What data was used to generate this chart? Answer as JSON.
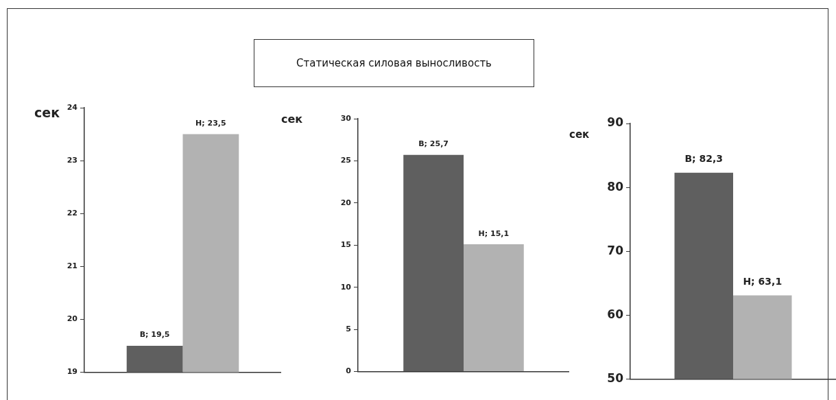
{
  "chart_data": [
    {
      "type": "bar",
      "ylabel": "сек",
      "categories": [
        null
      ],
      "ylim": [
        19,
        24
      ],
      "yticks": [
        19,
        20,
        21,
        22,
        23,
        24
      ],
      "grid": false,
      "legend": false,
      "series": [
        {
          "color": "#5f5f5f",
          "values": [
            19.5
          ],
          "value_labels": [
            "В; 19,5"
          ]
        },
        {
          "color": "#b2b2b2",
          "values": [
            23.5
          ],
          "value_labels": [
            "Н; 23,5"
          ]
        }
      ]
    },
    {
      "type": "bar",
      "title": "Статическая силовая выносливость",
      "ylabel": "сек",
      "categories": [
        null
      ],
      "ylim": [
        0,
        30
      ],
      "yticks": [
        0,
        5,
        10,
        15,
        20,
        25,
        30
      ],
      "grid": false,
      "legend": false,
      "series": [
        {
          "color": "#5f5f5f",
          "values": [
            25.7
          ],
          "value_labels": [
            "В; 25,7"
          ]
        },
        {
          "color": "#b2b2b2",
          "values": [
            15.1
          ],
          "value_labels": [
            "Н; 15,1"
          ]
        }
      ]
    },
    {
      "type": "bar",
      "ylabel": "сек",
      "categories": [
        null
      ],
      "ylim": [
        50,
        90
      ],
      "yticks": [
        50,
        60,
        70,
        80,
        90
      ],
      "grid": false,
      "legend": false,
      "series": [
        {
          "color": "#5f5f5f",
          "values": [
            82.3
          ],
          "value_labels": [
            "В; 82,3"
          ]
        },
        {
          "color": "#b2b2b2",
          "values": [
            63.1
          ],
          "value_labels": [
            "Н; 63,1"
          ]
        }
      ]
    }
  ]
}
